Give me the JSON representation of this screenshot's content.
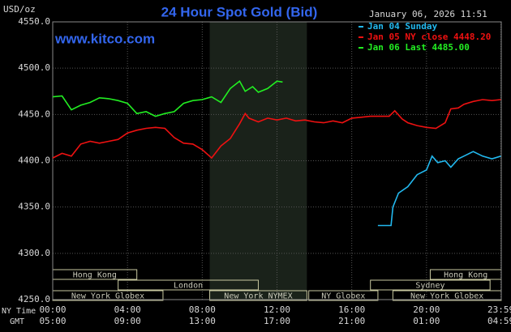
{
  "chart_data": {
    "type": "line",
    "title": "24 Hour Spot Gold (Bid)",
    "y_unit": "USD/oz",
    "website": "www.kitco.com",
    "timestamp": "January 06, 2026 11:51",
    "x_axis_rows": [
      "NY Time",
      "GMT"
    ],
    "xlim": [
      0,
      24
    ],
    "xticks": [
      {
        "value": 0,
        "label": "00:00"
      },
      {
        "value": 4,
        "label": "04:00"
      },
      {
        "value": 8,
        "label": "08:00"
      },
      {
        "value": 12,
        "label": "12:00"
      },
      {
        "value": 16,
        "label": "16:00"
      },
      {
        "value": 20,
        "label": "20:00"
      },
      {
        "value": 23.98,
        "label": "23:59"
      }
    ],
    "gmt_labels": [
      "05:00",
      "09:00",
      "13:00",
      "17:00",
      "21:00",
      "01:00",
      "04:59"
    ],
    "ylim": [
      4250,
      4550
    ],
    "yticks": [
      {
        "value": 4250,
        "label": "4250.0"
      },
      {
        "value": 4300,
        "label": "4300.0"
      },
      {
        "value": 4350,
        "label": "4350.0"
      },
      {
        "value": 4400,
        "label": "4400.0"
      },
      {
        "value": 4450,
        "label": "4450.0"
      },
      {
        "value": 4500,
        "label": "4500.0"
      },
      {
        "value": 4550,
        "label": "4550.0"
      }
    ],
    "grid": true,
    "legend": "top-right",
    "series": [
      {
        "name": "Jan 04 Sunday",
        "color": "#22b8ee",
        "x": [
          17.4,
          18.1,
          18.2,
          18.5,
          19,
          19.5,
          20,
          20.3,
          20.6,
          21,
          21.3,
          21.7,
          22,
          22.5,
          23,
          23.5,
          23.98
        ],
        "values": [
          4330,
          4330,
          4350,
          4365,
          4372,
          4385,
          4390,
          4405,
          4398,
          4400,
          4393,
          4402,
          4405,
          4410,
          4405,
          4402,
          4405
        ]
      },
      {
        "name": "Jan 05 NY close 4448.20",
        "color": "#ee1111",
        "x": [
          0,
          0.5,
          1,
          1.5,
          2,
          2.5,
          3,
          3.5,
          4,
          4.5,
          5,
          5.5,
          6,
          6.5,
          7,
          7.5,
          8,
          8.5,
          9,
          9.5,
          10,
          10.3,
          10.5,
          11,
          11.5,
          12,
          12.5,
          13,
          13.5,
          14,
          14.5,
          15,
          15.5,
          16,
          16.5,
          17,
          17.5,
          18,
          18.3,
          18.7,
          19,
          19.5,
          20,
          20.5,
          21,
          21.3,
          21.7,
          22,
          22.5,
          23,
          23.5,
          23.98
        ],
        "values": [
          4403,
          4408,
          4405,
          4418,
          4421,
          4419,
          4421,
          4423,
          4430,
          4433,
          4435,
          4436,
          4435,
          4425,
          4419,
          4418,
          4412,
          4403,
          4416,
          4424,
          4440,
          4451,
          4446,
          4442,
          4446,
          4444,
          4446,
          4443,
          4444,
          4442,
          4441,
          4443,
          4441,
          4446,
          4447,
          4448,
          4448,
          4448,
          4454,
          4445,
          4441,
          4438,
          4436,
          4435,
          4441,
          4456,
          4457,
          4461,
          4464,
          4466,
          4465,
          4466
        ]
      },
      {
        "name": "Jan 06 Last 4485.00",
        "color": "#22ee22",
        "x": [
          0,
          0.5,
          1,
          1.5,
          2,
          2.5,
          3,
          3.5,
          4,
          4.5,
          5,
          5.5,
          6,
          6.5,
          7,
          7.5,
          8,
          8.5,
          9,
          9.5,
          10,
          10.3,
          10.7,
          11,
          11.5,
          12,
          12.3
        ],
        "values": [
          4469,
          4470,
          4455,
          4460,
          4463,
          4468,
          4467,
          4465,
          4462,
          4451,
          4453,
          4448,
          4451,
          4453,
          4462,
          4465,
          4466,
          4469,
          4463,
          4478,
          4486,
          4475,
          4480,
          4474,
          4478,
          4486,
          4485
        ]
      }
    ],
    "sessions": [
      {
        "label": "Hong Kong",
        "start": 0,
        "end": 4.5
      },
      {
        "label": "Hong Kong",
        "start": 20.2,
        "end": 24
      },
      {
        "label": "London",
        "start": 3.5,
        "end": 11
      },
      {
        "label": "Sydney",
        "start": 17,
        "end": 23.4
      },
      {
        "label": "New York Globex",
        "start": 0,
        "end": 5.9
      },
      {
        "label": "New York NYMEX",
        "start": 8.4,
        "end": 13.6
      },
      {
        "label": "NY Globex",
        "start": 13.7,
        "end": 17.4
      },
      {
        "label": "New York Globex",
        "start": 18.2,
        "end": 24
      }
    ]
  }
}
